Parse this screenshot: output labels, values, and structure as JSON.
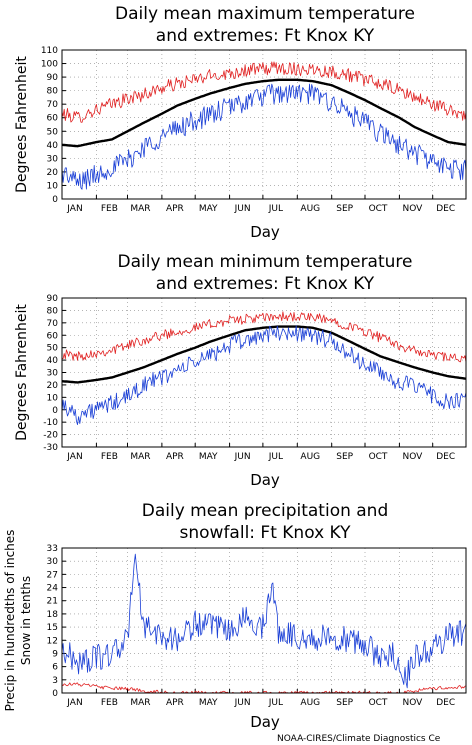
{
  "credit": "NOAA-CIRES/Climate Diagnostics Ce",
  "colors": {
    "mean": "#000000",
    "max": "#e02020",
    "min": "#1a3fd6",
    "precip": "#1a3fd6",
    "snow": "#e02020",
    "grid": "#888888"
  },
  "chart_data": [
    {
      "type": "line",
      "title": [
        "Daily mean maximum temperature",
        "and extremes: Ft Knox KY"
      ],
      "xlabel": "Day",
      "ylabel": [
        "Degrees Fahrenheit"
      ],
      "ylim": [
        0,
        110
      ],
      "yticks": [
        0,
        10,
        20,
        30,
        40,
        50,
        60,
        70,
        80,
        90,
        100,
        110
      ],
      "months": [
        "JAN",
        "FEB",
        "MAR",
        "APR",
        "MAY",
        "JUN",
        "JUL",
        "AUG",
        "SEP",
        "OCT",
        "NOV",
        "DEC"
      ],
      "grid": true,
      "series": [
        {
          "role": "max",
          "x": [
            1,
            15,
            32,
            46,
            60,
            74,
            91,
            105,
            121,
            135,
            152,
            166,
            182,
            196,
            213,
            227,
            244,
            258,
            274,
            288,
            305,
            319,
            335,
            349,
            365
          ],
          "values": [
            63,
            60,
            66,
            70,
            74,
            77,
            82,
            85,
            88,
            91,
            93,
            95,
            96,
            97,
            96,
            96,
            94,
            92,
            88,
            85,
            80,
            75,
            70,
            66,
            62
          ]
        },
        {
          "role": "mean",
          "x": [
            1,
            15,
            32,
            46,
            60,
            74,
            91,
            105,
            121,
            135,
            152,
            166,
            182,
            196,
            213,
            227,
            244,
            258,
            274,
            288,
            305,
            319,
            335,
            349,
            365
          ],
          "values": [
            40,
            39,
            42,
            44,
            50,
            56,
            63,
            69,
            74,
            78,
            82,
            85,
            87,
            88,
            88,
            87,
            84,
            79,
            73,
            67,
            60,
            53,
            47,
            42,
            40
          ]
        },
        {
          "role": "min",
          "x": [
            1,
            15,
            32,
            46,
            60,
            74,
            91,
            105,
            121,
            135,
            152,
            166,
            182,
            196,
            213,
            227,
            244,
            258,
            274,
            288,
            305,
            319,
            335,
            349,
            365
          ],
          "values": [
            20,
            12,
            18,
            24,
            28,
            38,
            46,
            52,
            58,
            62,
            68,
            72,
            76,
            78,
            78,
            77,
            72,
            64,
            56,
            48,
            40,
            34,
            28,
            22,
            22
          ]
        }
      ]
    },
    {
      "type": "line",
      "title": [
        "Daily mean minimum temperature",
        "and extremes: Ft Knox KY"
      ],
      "xlabel": "Day",
      "ylabel": [
        "Degrees Fahrenheit"
      ],
      "ylim": [
        -30,
        90
      ],
      "yticks": [
        -30,
        -20,
        -10,
        0,
        10,
        20,
        30,
        40,
        50,
        60,
        70,
        80,
        90
      ],
      "months": [
        "JAN",
        "FEB",
        "MAR",
        "APR",
        "MAY",
        "JUN",
        "JUL",
        "AUG",
        "SEP",
        "OCT",
        "NOV",
        "DEC"
      ],
      "grid": true,
      "series": [
        {
          "role": "max",
          "x": [
            1,
            15,
            32,
            46,
            60,
            74,
            91,
            105,
            121,
            135,
            152,
            166,
            182,
            196,
            213,
            227,
            244,
            258,
            274,
            288,
            305,
            319,
            335,
            349,
            365
          ],
          "values": [
            45,
            43,
            46,
            48,
            52,
            56,
            60,
            63,
            66,
            69,
            72,
            73,
            74,
            75,
            75,
            74,
            72,
            68,
            63,
            58,
            52,
            47,
            44,
            42,
            40
          ]
        },
        {
          "role": "mean",
          "x": [
            1,
            15,
            32,
            46,
            60,
            74,
            91,
            105,
            121,
            135,
            152,
            166,
            182,
            196,
            213,
            227,
            244,
            258,
            274,
            288,
            305,
            319,
            335,
            349,
            365
          ],
          "values": [
            23,
            22,
            24,
            26,
            30,
            34,
            40,
            45,
            50,
            55,
            60,
            64,
            66,
            67,
            67,
            66,
            62,
            56,
            49,
            43,
            38,
            34,
            30,
            27,
            25
          ]
        },
        {
          "role": "min",
          "x": [
            1,
            15,
            32,
            46,
            60,
            74,
            91,
            105,
            121,
            135,
            152,
            166,
            182,
            196,
            213,
            227,
            244,
            258,
            274,
            288,
            305,
            319,
            335,
            349,
            365
          ],
          "values": [
            5,
            -5,
            0,
            5,
            10,
            20,
            26,
            32,
            38,
            44,
            52,
            56,
            60,
            62,
            62,
            60,
            55,
            46,
            36,
            30,
            22,
            18,
            12,
            5,
            8
          ]
        }
      ]
    },
    {
      "type": "line",
      "title": [
        "Daily mean precipitation and",
        "snowfall: Ft Knox KY"
      ],
      "xlabel": "Day",
      "ylabel": [
        "Precip in hundredths of inches",
        "Snow in tenths"
      ],
      "ylim": [
        0,
        33
      ],
      "yticks": [
        0,
        3,
        6,
        9,
        12,
        15,
        18,
        21,
        24,
        27,
        30,
        33
      ],
      "months": [
        "JAN",
        "FEB",
        "MAR",
        "APR",
        "MAY",
        "JUN",
        "JUL",
        "AUG",
        "SEP",
        "OCT",
        "NOV",
        "DEC"
      ],
      "grid": true,
      "series": [
        {
          "role": "precip",
          "x": [
            1,
            15,
            32,
            46,
            60,
            67,
            74,
            91,
            105,
            121,
            135,
            152,
            166,
            182,
            190,
            196,
            213,
            227,
            244,
            258,
            274,
            288,
            300,
            310,
            319,
            335,
            349,
            365
          ],
          "values": [
            10,
            7,
            8,
            9,
            12,
            33,
            15,
            13,
            12,
            16,
            15,
            14,
            17,
            15,
            25,
            14,
            13,
            12,
            13,
            12,
            11,
            8,
            9,
            3,
            8,
            10,
            13,
            14
          ]
        },
        {
          "role": "snow",
          "x": [
            1,
            15,
            32,
            46,
            60,
            74,
            91,
            105,
            121,
            274,
            305,
            319,
            335,
            349,
            365
          ],
          "values": [
            2,
            2,
            1.5,
            1,
            1,
            0.5,
            0.2,
            0,
            0,
            0,
            0,
            0.5,
            1,
            1.2,
            1.5
          ]
        }
      ]
    }
  ]
}
